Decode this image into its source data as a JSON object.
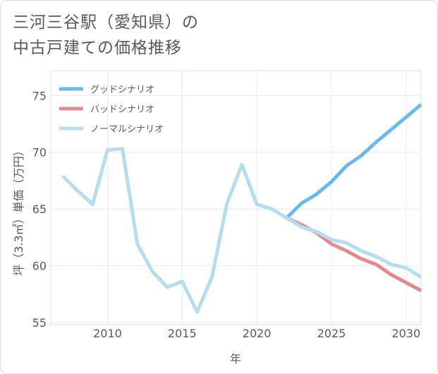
{
  "title": {
    "line1": "三河三谷駅（愛知県）の",
    "line2": "中古戸建ての価格推移"
  },
  "chart_data": {
    "type": "line",
    "xlabel": "年",
    "ylabel": "坪（3.3㎡）単価（万円）",
    "xlim": [
      2006.2,
      2031
    ],
    "ylim": [
      54.8,
      77.2
    ],
    "xticks": [
      2010,
      2015,
      2020,
      2025,
      2030
    ],
    "yticks": [
      55,
      60,
      65,
      70,
      75
    ],
    "grid": true,
    "legend_position": "top-left",
    "series": [
      {
        "name": "グッドシナリオ",
        "color": "#6cb8e6",
        "x": [
          2022,
          2023,
          2024,
          2025,
          2026,
          2027,
          2028,
          2029,
          2030,
          2031
        ],
        "y": [
          64.2,
          65.5,
          66.3,
          67.4,
          68.8,
          69.7,
          70.9,
          72.0,
          73.1,
          74.2
        ]
      },
      {
        "name": "バッドシナリオ",
        "color": "#e08a92",
        "x": [
          2022,
          2023,
          2024,
          2025,
          2026,
          2027,
          2028,
          2029,
          2030,
          2031
        ],
        "y": [
          64.2,
          63.6,
          62.9,
          61.9,
          61.3,
          60.6,
          60.1,
          59.2,
          58.5,
          57.8
        ]
      },
      {
        "name": "ノーマルシナリオ",
        "color": "#b8dcea",
        "x": [
          2007,
          2008,
          2009,
          2010,
          2011,
          2012,
          2013,
          2014,
          2015,
          2016,
          2017,
          2018,
          2019,
          2020,
          2021,
          2022,
          2023,
          2024,
          2025,
          2026,
          2027,
          2028,
          2029,
          2030,
          2031
        ],
        "y": [
          67.9,
          66.6,
          65.4,
          70.2,
          70.3,
          61.9,
          59.5,
          58.1,
          58.6,
          55.9,
          59.0,
          65.5,
          68.9,
          65.4,
          65.0,
          64.2,
          63.4,
          63.0,
          62.3,
          62.0,
          61.3,
          60.8,
          60.1,
          59.8,
          59.0
        ]
      }
    ]
  }
}
